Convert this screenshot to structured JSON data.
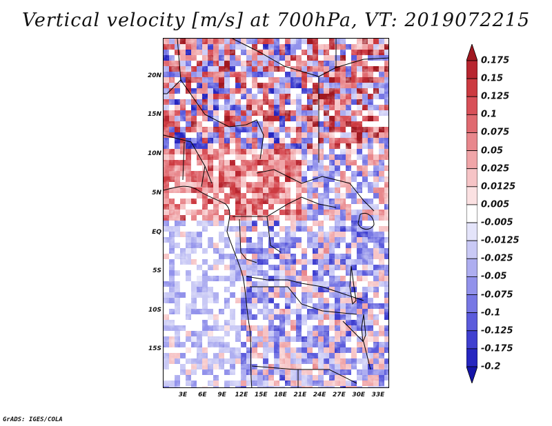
{
  "title": "Vertical velocity [m/s] at 700hPa, VT: 2019072215",
  "credit": "GrADS: IGES/COLA",
  "map": {
    "variable": "Vertical velocity",
    "units": "m/s",
    "level": "700hPa",
    "valid_time": "2019072215",
    "lat_range": [
      -19,
      24.5
    ],
    "lon_range": [
      0.5,
      35
    ],
    "lat_ticks": [
      "20N",
      "15N",
      "10N",
      "5N",
      "EQ",
      "5S",
      "10S",
      "15S"
    ],
    "lon_ticks": [
      "3E",
      "6E",
      "9E",
      "12E",
      "15E",
      "18E",
      "21E",
      "24E",
      "27E",
      "30E",
      "33E"
    ],
    "dominant_pattern": {
      "north_sahel": "mixed strong red and blue",
      "west_central": "light red (ascent)",
      "south_ocean": "light blue/white",
      "east_congo": "mixed blue with red"
    }
  },
  "colorbar": {
    "labels": [
      "0.175",
      "0.15",
      "0.125",
      "0.1",
      "0.075",
      "0.05",
      "0.025",
      "0.0125",
      "0.005",
      "-0.005",
      "-0.0125",
      "-0.025",
      "-0.05",
      "-0.075",
      "-0.1",
      "-0.125",
      "-0.175",
      "-0.2"
    ],
    "colors": [
      "#a01820",
      "#b82630",
      "#cc3a40",
      "#d85058",
      "#e06a70",
      "#e8878c",
      "#f0a5a8",
      "#f6c4c6",
      "#fbe1e2",
      "#ffffff",
      "#e4e4fa",
      "#c9c9f5",
      "#aeaef0",
      "#9292eb",
      "#7777e4",
      "#5b5bdc",
      "#3f3fd0",
      "#2626c0",
      "#1414a8"
    ]
  }
}
